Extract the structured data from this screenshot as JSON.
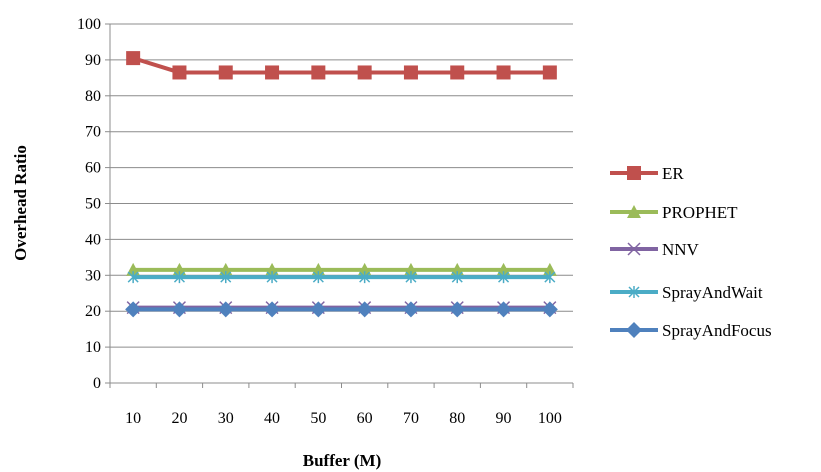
{
  "chart_data": {
    "type": "line",
    "title": "",
    "xlabel": "Buffer (M)",
    "ylabel": "Overhead Ratio",
    "categories": [
      "10",
      "20",
      "30",
      "40",
      "50",
      "60",
      "70",
      "80",
      "90",
      "100"
    ],
    "ylim": [
      0,
      100
    ],
    "yticks": [
      "0",
      "10",
      "20",
      "30",
      "40",
      "50",
      "60",
      "70",
      "80",
      "90",
      "100"
    ],
    "grid": "horizontal",
    "legend_position": "right",
    "series": [
      {
        "name": "ER",
        "color": "#C0504D",
        "marker": "square",
        "values": [
          90.5,
          86.5,
          86.5,
          86.5,
          86.5,
          86.5,
          86.5,
          86.5,
          86.5,
          86.5
        ]
      },
      {
        "name": "PROPHET",
        "color": "#9BBB59",
        "marker": "triangle",
        "values": [
          31.5,
          31.5,
          31.5,
          31.5,
          31.5,
          31.5,
          31.5,
          31.5,
          31.5,
          31.5
        ]
      },
      {
        "name": "NNV",
        "color": "#8064A2",
        "marker": "x",
        "values": [
          21,
          21,
          21,
          21,
          21,
          21,
          21,
          21,
          21,
          21
        ]
      },
      {
        "name": "SprayAndWait",
        "color": "#4BACC6",
        "marker": "asterisk",
        "values": [
          29.5,
          29.5,
          29.5,
          29.5,
          29.5,
          29.5,
          29.5,
          29.5,
          29.5,
          29.5
        ]
      },
      {
        "name": "SprayAndFocus",
        "color": "#4F81BD",
        "marker": "diamond",
        "values": [
          20.5,
          20.5,
          20.5,
          20.5,
          20.5,
          20.5,
          20.5,
          20.5,
          20.5,
          20.5
        ]
      }
    ]
  }
}
